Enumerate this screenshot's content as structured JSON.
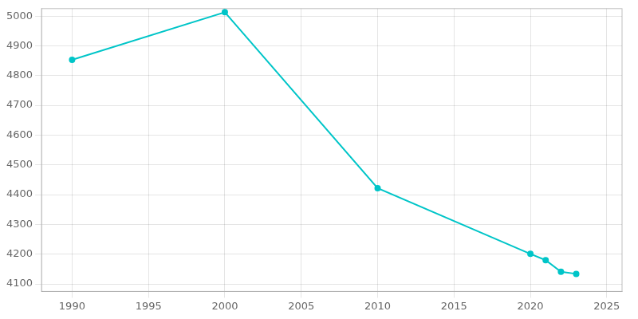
{
  "chart_data": {
    "type": "line",
    "x": [
      1990,
      2000,
      2010,
      2020,
      2021,
      2022,
      2023
    ],
    "values": [
      4853,
      5013,
      4422,
      4201,
      4180,
      4141,
      4134
    ],
    "color": "#00C5C8",
    "marker": "o",
    "xlim": [
      1988,
      2026
    ],
    "ylim": [
      4075,
      5025
    ],
    "xticks": [
      1990,
      1995,
      2000,
      2005,
      2010,
      2015,
      2020,
      2025
    ],
    "yticks": [
      4100,
      4200,
      4300,
      4400,
      4500,
      4600,
      4700,
      4800,
      4900,
      5000
    ],
    "grid": true
  }
}
